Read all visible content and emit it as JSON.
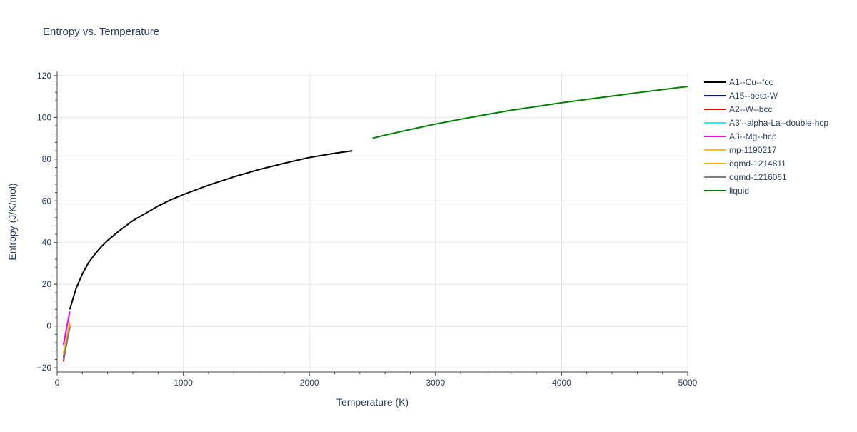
{
  "chart_data": {
    "type": "line",
    "title": "Entropy vs. Temperature",
    "xlabel": "Temperature (K)",
    "ylabel": "Entropy (J/K/mol)",
    "xlim": [
      0,
      5000
    ],
    "ylim": [
      -22,
      122
    ],
    "x_ticks": [
      0,
      1000,
      2000,
      3000,
      4000,
      5000
    ],
    "y_ticks": [
      -20,
      0,
      20,
      40,
      60,
      80,
      100,
      120
    ],
    "x_tick_labels": [
      "0",
      "1000",
      "2000",
      "3000",
      "4000",
      "5000"
    ],
    "y_tick_labels": [
      "−20",
      "0",
      "20",
      "40",
      "60",
      "80",
      "100",
      "120"
    ],
    "grid": true,
    "legend_position": "right",
    "series": [
      {
        "name": "A1--Cu--fcc",
        "color": "#000000",
        "x": [
          100,
          150,
          200,
          250,
          300,
          350,
          400,
          500,
          600,
          700,
          800,
          900,
          1000,
          1200,
          1400,
          1600,
          1800,
          2000,
          2200,
          2340
        ],
        "y": [
          8,
          18,
          25,
          30.5,
          34.5,
          38,
          41,
          46,
          50.5,
          54,
          57.5,
          60.5,
          63,
          67.5,
          71.5,
          75,
          78,
          80.8,
          82.8,
          84
        ]
      },
      {
        "name": "A15--beta-W",
        "color": "#0000ff",
        "x": [
          50,
          100
        ],
        "y": [
          -15,
          0
        ]
      },
      {
        "name": "A2--W--bcc",
        "color": "#ff0000",
        "x": [
          50,
          100
        ],
        "y": [
          -17,
          0
        ]
      },
      {
        "name": "A3'--alpha-La--double-hcp",
        "color": "#00ffff",
        "x": [
          50,
          100
        ],
        "y": [
          -9,
          7
        ]
      },
      {
        "name": "A3--Mg--hcp",
        "color": "#ff00ff",
        "x": [
          50,
          100
        ],
        "y": [
          -9,
          7
        ]
      },
      {
        "name": "mp-1190217",
        "color": "#ffc000",
        "x": [
          50,
          100
        ],
        "y": [
          -13,
          2
        ]
      },
      {
        "name": "oqmd-1214811",
        "color": "#ffa500",
        "x": [
          50,
          100
        ],
        "y": [
          -14,
          1
        ]
      },
      {
        "name": "oqmd-1216061",
        "color": "#808080",
        "x": [
          50,
          100
        ],
        "y": [
          -16,
          -1
        ]
      },
      {
        "name": "liquid",
        "color": "#008000",
        "x": [
          2500,
          2600,
          2800,
          3000,
          3200,
          3400,
          3600,
          3800,
          4000,
          4200,
          4400,
          4600,
          4800,
          5000
        ],
        "y": [
          90,
          91.5,
          94.2,
          96.8,
          99.1,
          101.3,
          103.4,
          105.2,
          107,
          108.6,
          110.2,
          111.8,
          113.3,
          114.8
        ]
      }
    ]
  }
}
